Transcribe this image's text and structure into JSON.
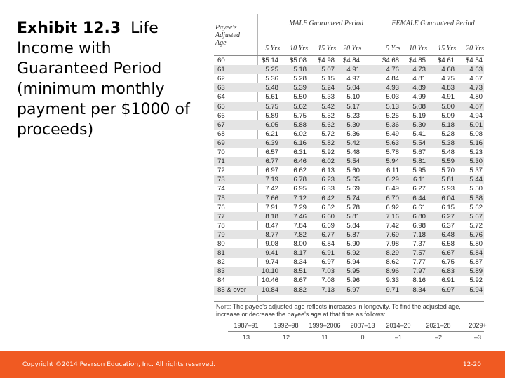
{
  "title": {
    "bold": "Exhibit 12.3",
    "rest": "Life Income with Guaranteed Period (minimum monthly payment per $1000 of proceeds)"
  },
  "table": {
    "age_header": "Payee's Adjusted Age",
    "male_header": "MALE Guaranteed Period",
    "female_header": "FEMALE Guaranteed Period",
    "period_headers": [
      "5 Yrs",
      "10 Yrs",
      "15 Yrs",
      "20 Yrs",
      "5 Yrs",
      "10 Yrs",
      "15 Yrs",
      "20 Yrs"
    ],
    "rows": [
      {
        "age": "60",
        "values": [
          "$5.14",
          "$5.08",
          "$4.98",
          "$4.84",
          "$4.68",
          "$4.85",
          "$4.61",
          "$4.54"
        ]
      },
      {
        "age": "61",
        "values": [
          "5.25",
          "5.18",
          "5.07",
          "4.91",
          "4.76",
          "4.73",
          "4.68",
          "4.63"
        ]
      },
      {
        "age": "62",
        "values": [
          "5.36",
          "5.28",
          "5.15",
          "4.97",
          "4.84",
          "4.81",
          "4.75",
          "4.67"
        ]
      },
      {
        "age": "63",
        "values": [
          "5.48",
          "5.39",
          "5.24",
          "5.04",
          "4.93",
          "4.89",
          "4.83",
          "4.73"
        ]
      },
      {
        "age": "64",
        "values": [
          "5.61",
          "5.50",
          "5.33",
          "5.10",
          "5.03",
          "4.99",
          "4.91",
          "4.80"
        ]
      },
      {
        "age": "65",
        "values": [
          "5.75",
          "5.62",
          "5.42",
          "5.17",
          "5.13",
          "5.08",
          "5.00",
          "4.87"
        ]
      },
      {
        "age": "66",
        "values": [
          "5.89",
          "5.75",
          "5.52",
          "5.23",
          "5.25",
          "5.19",
          "5.09",
          "4.94"
        ]
      },
      {
        "age": "67",
        "values": [
          "6.05",
          "5.88",
          "5.62",
          "5.30",
          "5.36",
          "5.30",
          "5.18",
          "5.01"
        ]
      },
      {
        "age": "68",
        "values": [
          "6.21",
          "6.02",
          "5.72",
          "5.36",
          "5.49",
          "5.41",
          "5.28",
          "5.08"
        ]
      },
      {
        "age": "69",
        "values": [
          "6.39",
          "6.16",
          "5.82",
          "5.42",
          "5.63",
          "5.54",
          "5.38",
          "5.16"
        ]
      },
      {
        "age": "70",
        "values": [
          "6.57",
          "6.31",
          "5.92",
          "5.48",
          "5.78",
          "5.67",
          "5.48",
          "5.23"
        ]
      },
      {
        "age": "71",
        "values": [
          "6.77",
          "6.46",
          "6.02",
          "5.54",
          "5.94",
          "5.81",
          "5.59",
          "5.30"
        ]
      },
      {
        "age": "72",
        "values": [
          "6.97",
          "6.62",
          "6.13",
          "5.60",
          "6.11",
          "5.95",
          "5.70",
          "5.37"
        ]
      },
      {
        "age": "73",
        "values": [
          "7.19",
          "6.78",
          "6.23",
          "5.65",
          "6.29",
          "6.11",
          "5.81",
          "5.44"
        ]
      },
      {
        "age": "74",
        "values": [
          "7.42",
          "6.95",
          "6.33",
          "5.69",
          "6.49",
          "6.27",
          "5.93",
          "5.50"
        ]
      },
      {
        "age": "75",
        "values": [
          "7.66",
          "7.12",
          "6.42",
          "5.74",
          "6.70",
          "6.44",
          "6.04",
          "5.58"
        ]
      },
      {
        "age": "76",
        "values": [
          "7.91",
          "7.29",
          "6.52",
          "5.78",
          "6.92",
          "6.61",
          "6.15",
          "5.62"
        ]
      },
      {
        "age": "77",
        "values": [
          "8.18",
          "7.46",
          "6.60",
          "5.81",
          "7.16",
          "6.80",
          "6.27",
          "5.67"
        ]
      },
      {
        "age": "78",
        "values": [
          "8.47",
          "7.84",
          "6.69",
          "5.84",
          "7.42",
          "6.98",
          "6.37",
          "5.72"
        ]
      },
      {
        "age": "79",
        "values": [
          "8.77",
          "7.82",
          "6.77",
          "5.87",
          "7.69",
          "7.18",
          "6.48",
          "5.76"
        ]
      },
      {
        "age": "80",
        "values": [
          "9.08",
          "8.00",
          "6.84",
          "5.90",
          "7.98",
          "7.37",
          "6.58",
          "5.80"
        ]
      },
      {
        "age": "81",
        "values": [
          "9.41",
          "8.17",
          "6.91",
          "5.92",
          "8.29",
          "7.57",
          "6.67",
          "5.84"
        ]
      },
      {
        "age": "82",
        "values": [
          "9.74",
          "8.34",
          "6.97",
          "5.94",
          "8.62",
          "7.77",
          "6.75",
          "5.87"
        ]
      },
      {
        "age": "83",
        "values": [
          "10.10",
          "8.51",
          "7.03",
          "5.95",
          "8.96",
          "7.97",
          "6.83",
          "5.89"
        ]
      },
      {
        "age": "84",
        "values": [
          "10.46",
          "8.67",
          "7.08",
          "5.96",
          "9.33",
          "8.16",
          "6.91",
          "5.92"
        ]
      },
      {
        "age": "85 & over",
        "values": [
          "10.84",
          "8.82",
          "7.13",
          "5.97",
          "9.71",
          "8.34",
          "6.97",
          "5.94"
        ]
      }
    ],
    "note_label": "Note:",
    "note_text": "The payee's adjusted age reflects increases in longevity. To find the adjusted age, increase or decrease the payee's age at that time as follows:",
    "adjustments": [
      {
        "years": "1987–91",
        "change": "13"
      },
      {
        "years": "1992–98",
        "change": "12"
      },
      {
        "years": "1999–2006",
        "change": "11"
      },
      {
        "years": "2007–13",
        "change": "0"
      },
      {
        "years": "2014–20",
        "change": "–1"
      },
      {
        "years": "2021–28",
        "change": "–2"
      },
      {
        "years": "2029+",
        "change": "–3"
      }
    ]
  },
  "footer": {
    "copyright": "Copyright ©2014 Pearson Education, Inc. All rights reserved.",
    "page": "12-20"
  },
  "colors": {
    "footer_bg": "#f05a22",
    "band": "#e4e4e4"
  }
}
